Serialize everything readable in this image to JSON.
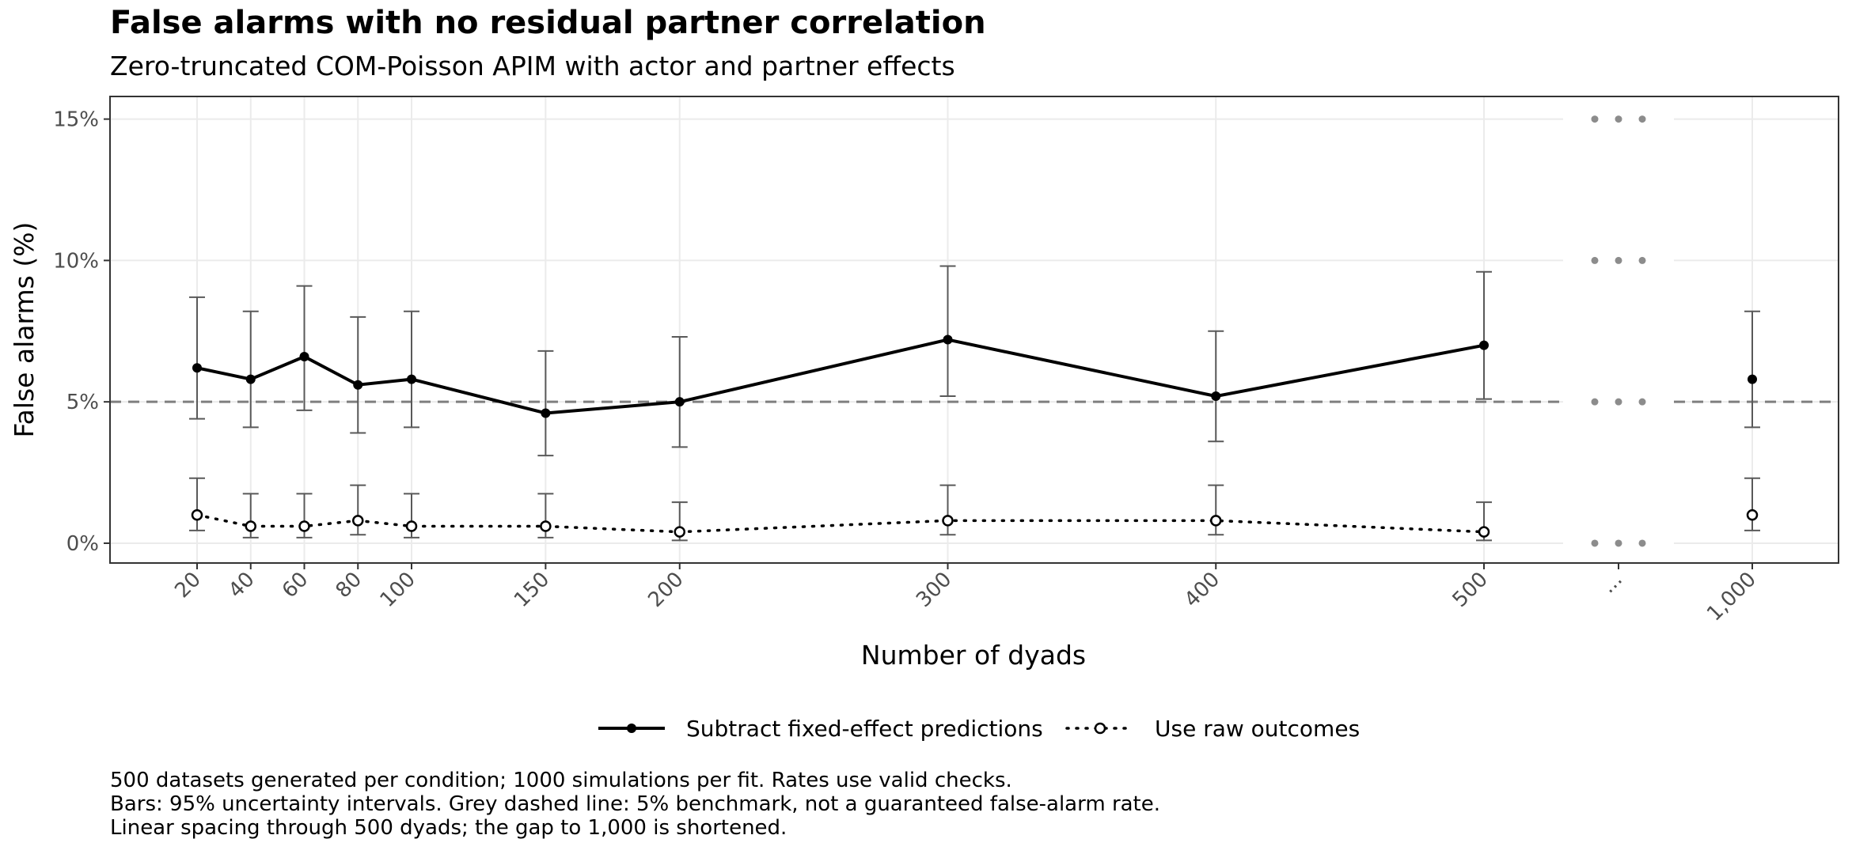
{
  "chart_data": {
    "type": "line",
    "title": "False alarms with no residual partner correlation",
    "subtitle": "Zero-truncated COM-Poisson APIM with actor and partner effects",
    "xlabel": "Number of dyads",
    "ylabel": "False alarms (%)",
    "x_tick_labels": [
      "20",
      "40",
      "60",
      "80",
      "100",
      "150",
      "200",
      "300",
      "400",
      "500",
      "...",
      "1,000"
    ],
    "x_break_label": "...",
    "y_ticks": [
      0,
      5,
      10,
      15
    ],
    "y_tick_labels": [
      "0%",
      "5%",
      "10%",
      "15%"
    ],
    "ylim": [
      -0.7,
      15.8
    ],
    "benchmark": {
      "value": 5,
      "style": "dashed",
      "color": "#7f7f7f"
    },
    "grid": true,
    "legend_position": "bottom",
    "x": [
      20,
      40,
      60,
      80,
      100,
      150,
      200,
      300,
      400,
      500,
      1000
    ],
    "series": [
      {
        "name": "Subtract fixed-effect predictions",
        "line": "solid",
        "marker": "filled-circle",
        "values": [
          6.2,
          5.8,
          6.6,
          5.6,
          5.8,
          4.6,
          5.0,
          7.2,
          5.2,
          7.0,
          5.8
        ],
        "lower": [
          4.4,
          4.1,
          4.7,
          3.9,
          4.1,
          3.1,
          3.4,
          5.2,
          3.6,
          5.1,
          4.1
        ],
        "upper": [
          8.7,
          8.2,
          9.1,
          8.0,
          8.2,
          6.8,
          7.3,
          9.8,
          7.5,
          9.6,
          8.2
        ]
      },
      {
        "name": "Use raw outcomes",
        "line": "dotted",
        "marker": "open-circle",
        "values": [
          1.0,
          0.6,
          0.6,
          0.8,
          0.6,
          0.6,
          0.4,
          0.8,
          0.8,
          0.4,
          1.0
        ],
        "lower": [
          0.45,
          0.2,
          0.2,
          0.3,
          0.2,
          0.2,
          0.1,
          0.3,
          0.3,
          0.1,
          0.45
        ],
        "upper": [
          2.3,
          1.75,
          1.75,
          2.05,
          1.75,
          1.75,
          1.45,
          2.05,
          2.05,
          1.45,
          2.3
        ]
      }
    ],
    "caption_lines": [
      "500 datasets generated per condition; 1000 simulations per fit. Rates use valid checks.",
      "Bars: 95% uncertainty intervals. Grey dashed line: 5% benchmark, not a guaranteed false-alarm rate.",
      "Linear spacing through 500 dyads; the gap to 1,000 is shortened."
    ],
    "colors": {
      "line": "#000000",
      "errorbar": "#595959",
      "benchmark": "#7f7f7f",
      "grid": "#ebebeb",
      "break_dots": "#8c8c8c",
      "panel_border": "#333333"
    }
  }
}
